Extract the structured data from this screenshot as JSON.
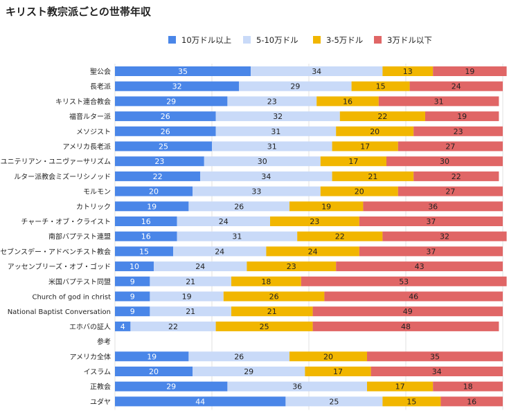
{
  "chart_data": {
    "type": "bar",
    "orientation": "horizontal",
    "stacked": true,
    "title": "キリスト教宗派ごとの世帯年収",
    "xlabel": "",
    "ylabel": "",
    "xlim": [
      0,
      100
    ],
    "grid": true,
    "legend_position": "top-right",
    "categories": [
      "聖公会",
      "長老派",
      "キリスト連合教会",
      "福音ルター派",
      "メソジスト",
      "アメリカ長老派",
      "ユニテリアン・ユニヴァーサリズム",
      "ルター派教会ミズーリシノッド",
      "モルモン",
      "カトリック",
      "チャーチ・オブ・クライスト",
      "南部バプテスト連盟",
      "セブンスデー・アドベンチスト教会",
      "アッセンブリーズ・オブ・ゴッド",
      "米国バプテスト同盟",
      "Church of god in christ",
      "National Baptist Conversation",
      "エホバの証人",
      "参考",
      "アメリカ全体",
      "イスラム",
      "正教会",
      "ユダヤ"
    ],
    "series": [
      {
        "name": "10万ドル以上",
        "color": "#4a86e8",
        "values": [
          35,
          32,
          29,
          26,
          26,
          25,
          23,
          22,
          20,
          19,
          16,
          16,
          15,
          10,
          9,
          9,
          9,
          4,
          null,
          19,
          20,
          29,
          44
        ]
      },
      {
        "name": "5-10万ドル",
        "color": "#c9daf8",
        "values": [
          34,
          29,
          23,
          32,
          31,
          31,
          30,
          34,
          33,
          26,
          24,
          31,
          24,
          24,
          21,
          19,
          21,
          22,
          null,
          26,
          29,
          36,
          25
        ]
      },
      {
        "name": "3-5万ドル",
        "color": "#f1b600",
        "values": [
          13,
          15,
          16,
          22,
          20,
          17,
          17,
          21,
          20,
          19,
          23,
          22,
          24,
          23,
          18,
          26,
          21,
          25,
          null,
          20,
          17,
          17,
          15
        ]
      },
      {
        "name": "3万ドル以下",
        "color": "#e06666",
        "values": [
          19,
          24,
          31,
          19,
          23,
          27,
          30,
          22,
          27,
          36,
          37,
          32,
          37,
          43,
          53,
          46,
          49,
          48,
          null,
          35,
          34,
          18,
          16
        ]
      }
    ]
  }
}
